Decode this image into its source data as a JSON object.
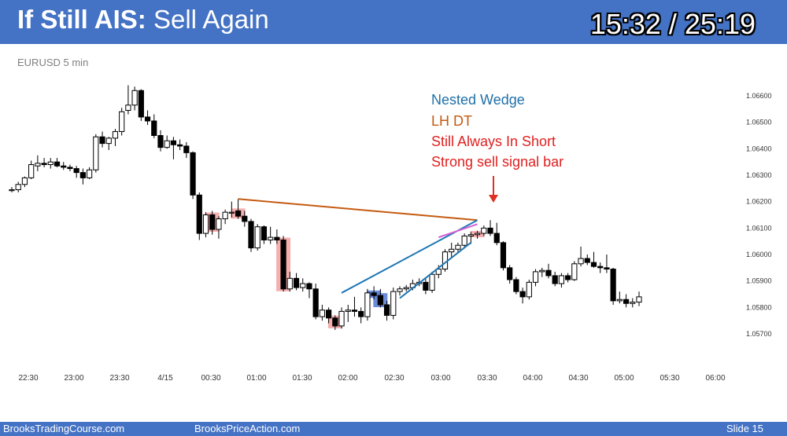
{
  "header": {
    "title_bold": "If Still AIS:",
    "title_rest": " Sell Again",
    "timer": "15:32 / 25:19"
  },
  "footer": {
    "left": "BrooksTradingCourse.com",
    "center": "BrooksPriceAction.com",
    "right": "Slide  15"
  },
  "colors": {
    "header_bg": "#4472c4",
    "bull_body": "#ffffff",
    "bear_body": "#000000",
    "red_highlight": "#f4a6a6",
    "blue_highlight": "#5b7fd4",
    "wedge_line": "#1f77b4",
    "lh_dt_line": "#c55a11",
    "nested_line": "#d462d4",
    "arrow": "#e03020"
  },
  "chart_data": {
    "type": "candlestick",
    "symbol_label": "EURUSD 5 min",
    "ylim": [
      1.0565,
      1.0671
    ],
    "yticks": [
      "1.06600",
      "1.06500",
      "1.06400",
      "1.06300",
      "1.06200",
      "1.06100",
      "1.06000",
      "1.05900",
      "1.05800",
      "1.05700"
    ],
    "xticks": [
      "22:30",
      "23:00",
      "23:30",
      "4/15",
      "00:30",
      "01:00",
      "01:30",
      "02:00",
      "02:30",
      "03:00",
      "03:30",
      "04:00",
      "04:30",
      "05:00",
      "05:30",
      "06:00"
    ],
    "bars": [
      {
        "o": 1.06245,
        "h": 1.06255,
        "l": 1.06235,
        "c": 1.06245
      },
      {
        "o": 1.06245,
        "h": 1.06275,
        "l": 1.06235,
        "c": 1.06265
      },
      {
        "o": 1.06265,
        "h": 1.06295,
        "l": 1.06255,
        "c": 1.0629
      },
      {
        "o": 1.0629,
        "h": 1.06355,
        "l": 1.06285,
        "c": 1.0634
      },
      {
        "o": 1.06335,
        "h": 1.06375,
        "l": 1.06315,
        "c": 1.06345
      },
      {
        "o": 1.06345,
        "h": 1.06365,
        "l": 1.0633,
        "c": 1.0634
      },
      {
        "o": 1.0634,
        "h": 1.06365,
        "l": 1.06325,
        "c": 1.0635
      },
      {
        "o": 1.0635,
        "h": 1.06365,
        "l": 1.0633,
        "c": 1.06335
      },
      {
        "o": 1.06335,
        "h": 1.0635,
        "l": 1.0632,
        "c": 1.0633
      },
      {
        "o": 1.0633,
        "h": 1.0634,
        "l": 1.06315,
        "c": 1.06325
      },
      {
        "o": 1.06325,
        "h": 1.06335,
        "l": 1.0629,
        "c": 1.0631
      },
      {
        "o": 1.0631,
        "h": 1.06325,
        "l": 1.06265,
        "c": 1.0629
      },
      {
        "o": 1.0629,
        "h": 1.0633,
        "l": 1.06285,
        "c": 1.0632
      },
      {
        "o": 1.0632,
        "h": 1.06455,
        "l": 1.0631,
        "c": 1.06445
      },
      {
        "o": 1.06445,
        "h": 1.06465,
        "l": 1.06405,
        "c": 1.0642
      },
      {
        "o": 1.0642,
        "h": 1.06445,
        "l": 1.06395,
        "c": 1.0644
      },
      {
        "o": 1.0644,
        "h": 1.06475,
        "l": 1.0641,
        "c": 1.06465
      },
      {
        "o": 1.06465,
        "h": 1.06555,
        "l": 1.0645,
        "c": 1.0654
      },
      {
        "o": 1.06545,
        "h": 1.0664,
        "l": 1.0653,
        "c": 1.06565
      },
      {
        "o": 1.06565,
        "h": 1.06635,
        "l": 1.06545,
        "c": 1.0662
      },
      {
        "o": 1.0662,
        "h": 1.06625,
        "l": 1.06505,
        "c": 1.0652
      },
      {
        "o": 1.0652,
        "h": 1.06545,
        "l": 1.0649,
        "c": 1.06505
      },
      {
        "o": 1.06505,
        "h": 1.0653,
        "l": 1.0644,
        "c": 1.0645
      },
      {
        "o": 1.0645,
        "h": 1.0647,
        "l": 1.0639,
        "c": 1.06405
      },
      {
        "o": 1.06405,
        "h": 1.0645,
        "l": 1.064,
        "c": 1.0643
      },
      {
        "o": 1.0643,
        "h": 1.06445,
        "l": 1.0636,
        "c": 1.06415
      },
      {
        "o": 1.06415,
        "h": 1.06435,
        "l": 1.06395,
        "c": 1.0641
      },
      {
        "o": 1.0641,
        "h": 1.06425,
        "l": 1.06365,
        "c": 1.06385
      },
      {
        "o": 1.06385,
        "h": 1.0639,
        "l": 1.0621,
        "c": 1.06225
      },
      {
        "o": 1.06225,
        "h": 1.06235,
        "l": 1.06055,
        "c": 1.0608
      },
      {
        "o": 1.0608,
        "h": 1.0616,
        "l": 1.06065,
        "c": 1.0615
      },
      {
        "o": 1.0615,
        "h": 1.06165,
        "l": 1.06075,
        "c": 1.06095
      },
      {
        "o": 1.06095,
        "h": 1.06145,
        "l": 1.0606,
        "c": 1.06135
      },
      {
        "o": 1.06135,
        "h": 1.0617,
        "l": 1.06115,
        "c": 1.0616
      },
      {
        "o": 1.0616,
        "h": 1.062,
        "l": 1.0614,
        "c": 1.0616
      },
      {
        "o": 1.06165,
        "h": 1.0621,
        "l": 1.06135,
        "c": 1.06145
      },
      {
        "o": 1.06145,
        "h": 1.06165,
        "l": 1.06105,
        "c": 1.06125
      },
      {
        "o": 1.06125,
        "h": 1.06135,
        "l": 1.0601,
        "c": 1.06025
      },
      {
        "o": 1.06025,
        "h": 1.06115,
        "l": 1.06015,
        "c": 1.06105
      },
      {
        "o": 1.06105,
        "h": 1.0611,
        "l": 1.0604,
        "c": 1.06055
      },
      {
        "o": 1.06055,
        "h": 1.06105,
        "l": 1.0604,
        "c": 1.06065
      },
      {
        "o": 1.06065,
        "h": 1.06095,
        "l": 1.0604,
        "c": 1.06055
      },
      {
        "o": 1.06055,
        "h": 1.0607,
        "l": 1.0586,
        "c": 1.0587
      },
      {
        "o": 1.0587,
        "h": 1.05935,
        "l": 1.0586,
        "c": 1.0591
      },
      {
        "o": 1.0591,
        "h": 1.0593,
        "l": 1.05865,
        "c": 1.05875
      },
      {
        "o": 1.05875,
        "h": 1.0591,
        "l": 1.0586,
        "c": 1.0589
      },
      {
        "o": 1.0589,
        "h": 1.05895,
        "l": 1.05835,
        "c": 1.0587
      },
      {
        "o": 1.0587,
        "h": 1.0589,
        "l": 1.05755,
        "c": 1.05765
      },
      {
        "o": 1.05765,
        "h": 1.0581,
        "l": 1.0575,
        "c": 1.0579
      },
      {
        "o": 1.0579,
        "h": 1.058,
        "l": 1.0574,
        "c": 1.0576
      },
      {
        "o": 1.0576,
        "h": 1.0577,
        "l": 1.05715,
        "c": 1.0573
      },
      {
        "o": 1.0573,
        "h": 1.058,
        "l": 1.0572,
        "c": 1.05785
      },
      {
        "o": 1.05785,
        "h": 1.0581,
        "l": 1.05745,
        "c": 1.0579
      },
      {
        "o": 1.0579,
        "h": 1.0584,
        "l": 1.05765,
        "c": 1.05785
      },
      {
        "o": 1.05785,
        "h": 1.058,
        "l": 1.0574,
        "c": 1.05765
      },
      {
        "o": 1.05765,
        "h": 1.0587,
        "l": 1.0575,
        "c": 1.05855
      },
      {
        "o": 1.05855,
        "h": 1.0588,
        "l": 1.0583,
        "c": 1.05845
      },
      {
        "o": 1.05845,
        "h": 1.0587,
        "l": 1.058,
        "c": 1.0581
      },
      {
        "o": 1.0581,
        "h": 1.05825,
        "l": 1.0575,
        "c": 1.0577
      },
      {
        "o": 1.0577,
        "h": 1.05875,
        "l": 1.05755,
        "c": 1.0586
      },
      {
        "o": 1.0586,
        "h": 1.0588,
        "l": 1.05845,
        "c": 1.0587
      },
      {
        "o": 1.0587,
        "h": 1.05885,
        "l": 1.0586,
        "c": 1.05875
      },
      {
        "o": 1.05875,
        "h": 1.05905,
        "l": 1.05865,
        "c": 1.0589
      },
      {
        "o": 1.0589,
        "h": 1.0591,
        "l": 1.0588,
        "c": 1.05895
      },
      {
        "o": 1.05895,
        "h": 1.0591,
        "l": 1.0585,
        "c": 1.05865
      },
      {
        "o": 1.05865,
        "h": 1.05935,
        "l": 1.05855,
        "c": 1.05925
      },
      {
        "o": 1.05925,
        "h": 1.0596,
        "l": 1.0591,
        "c": 1.05945
      },
      {
        "o": 1.05945,
        "h": 1.0602,
        "l": 1.05935,
        "c": 1.0601
      },
      {
        "o": 1.0601,
        "h": 1.06045,
        "l": 1.05985,
        "c": 1.0602
      },
      {
        "o": 1.0602,
        "h": 1.06045,
        "l": 1.0601,
        "c": 1.06035
      },
      {
        "o": 1.06035,
        "h": 1.0608,
        "l": 1.06025,
        "c": 1.0607
      },
      {
        "o": 1.0607,
        "h": 1.06085,
        "l": 1.0604,
        "c": 1.06075
      },
      {
        "o": 1.06075,
        "h": 1.0609,
        "l": 1.0606,
        "c": 1.0608
      },
      {
        "o": 1.0608,
        "h": 1.0611,
        "l": 1.0607,
        "c": 1.061
      },
      {
        "o": 1.061,
        "h": 1.0613,
        "l": 1.0607,
        "c": 1.0608
      },
      {
        "o": 1.0608,
        "h": 1.0612,
        "l": 1.06035,
        "c": 1.06045
      },
      {
        "o": 1.06045,
        "h": 1.0605,
        "l": 1.0594,
        "c": 1.0595
      },
      {
        "o": 1.0595,
        "h": 1.0596,
        "l": 1.0589,
        "c": 1.05905
      },
      {
        "o": 1.05905,
        "h": 1.05915,
        "l": 1.0585,
        "c": 1.0586
      },
      {
        "o": 1.0586,
        "h": 1.05875,
        "l": 1.05815,
        "c": 1.0584
      },
      {
        "o": 1.0584,
        "h": 1.05905,
        "l": 1.0583,
        "c": 1.05895
      },
      {
        "o": 1.05895,
        "h": 1.05945,
        "l": 1.0588,
        "c": 1.05935
      },
      {
        "o": 1.05935,
        "h": 1.0595,
        "l": 1.05915,
        "c": 1.0594
      },
      {
        "o": 1.0594,
        "h": 1.05965,
        "l": 1.0591,
        "c": 1.0592
      },
      {
        "o": 1.0592,
        "h": 1.05935,
        "l": 1.0588,
        "c": 1.0589
      },
      {
        "o": 1.0589,
        "h": 1.0593,
        "l": 1.05875,
        "c": 1.0592
      },
      {
        "o": 1.0592,
        "h": 1.0593,
        "l": 1.05895,
        "c": 1.05905
      },
      {
        "o": 1.05905,
        "h": 1.05975,
        "l": 1.059,
        "c": 1.05965
      },
      {
        "o": 1.05965,
        "h": 1.0603,
        "l": 1.05955,
        "c": 1.05985
      },
      {
        "o": 1.05985,
        "h": 1.06,
        "l": 1.0596,
        "c": 1.0597
      },
      {
        "o": 1.0597,
        "h": 1.0601,
        "l": 1.0595,
        "c": 1.05955
      },
      {
        "o": 1.05955,
        "h": 1.0597,
        "l": 1.0593,
        "c": 1.0595
      },
      {
        "o": 1.0595,
        "h": 1.06,
        "l": 1.0593,
        "c": 1.05945
      },
      {
        "o": 1.05945,
        "h": 1.0595,
        "l": 1.0581,
        "c": 1.05825
      },
      {
        "o": 1.05825,
        "h": 1.0586,
        "l": 1.05815,
        "c": 1.0583
      },
      {
        "o": 1.0583,
        "h": 1.0585,
        "l": 1.058,
        "c": 1.05815
      },
      {
        "o": 1.05815,
        "h": 1.05835,
        "l": 1.058,
        "c": 1.0582
      },
      {
        "o": 1.0582,
        "h": 1.0586,
        "l": 1.05805,
        "c": 1.0584
      }
    ],
    "bar_x_start": 15,
    "bar_x_end": 812,
    "highlights": [
      {
        "bar": 31,
        "color": "red"
      },
      {
        "bar": 35,
        "color": "red"
      },
      {
        "bar": 42,
        "color": "red"
      },
      {
        "bar": 50,
        "color": "red"
      },
      {
        "bar": 56,
        "color": "blue"
      },
      {
        "bar": 57,
        "color": "blue"
      },
      {
        "bar": 72,
        "color": "red"
      }
    ],
    "annotations": {
      "nested_wedge": "Nested Wedge",
      "lh_dt": "LH DT",
      "still_ais": "Still Always In Short",
      "strong_signal": "Strong sell signal bar"
    },
    "lines": {
      "lh_dt": {
        "from": [
          35,
          1.0621
        ],
        "to": [
          72,
          1.0613
        ]
      },
      "wedge_upper": {
        "from": [
          51,
          1.05855
        ],
        "to": [
          72,
          1.0613
        ]
      },
      "wedge_lower": {
        "from": [
          60,
          1.05835
        ],
        "to": [
          71,
          1.06045
        ]
      },
      "nested": {
        "from": [
          66,
          1.06065
        ],
        "to": [
          72,
          1.06115
        ]
      }
    }
  }
}
